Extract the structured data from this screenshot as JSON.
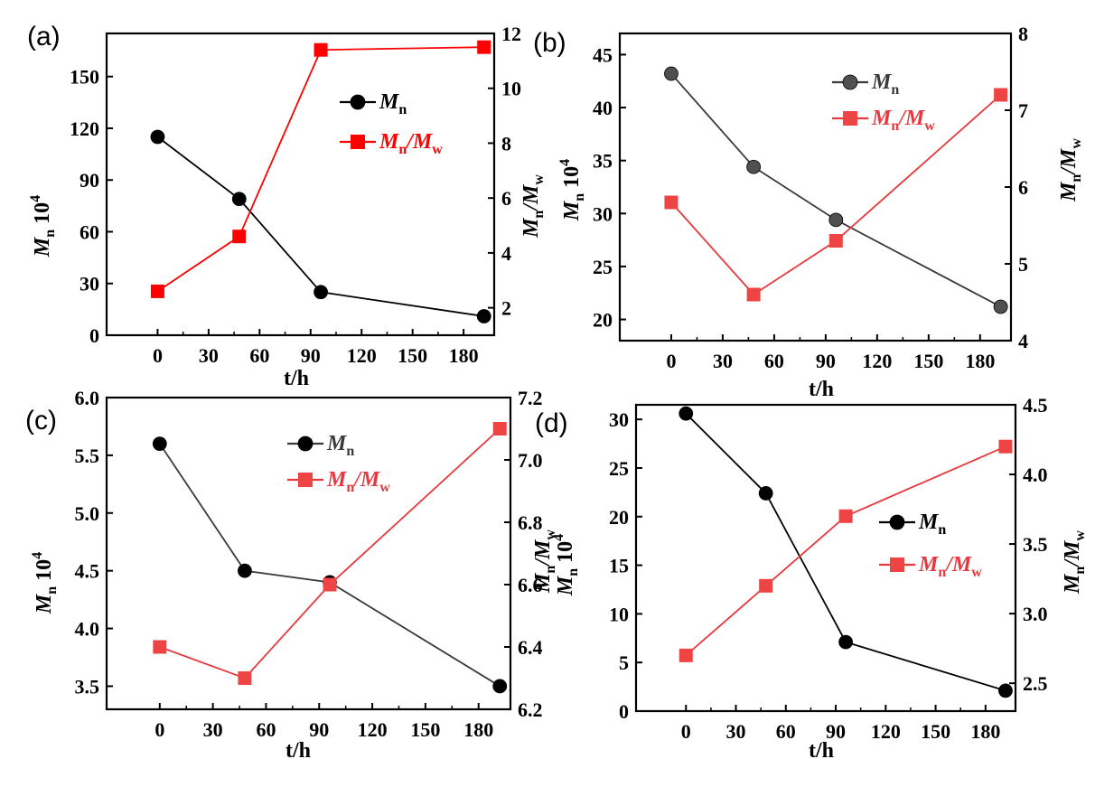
{
  "chart_data": [
    {
      "type": "line",
      "panel_label": "(a)",
      "xlabel": "t/h",
      "ylabel_left": {
        "main": "M",
        "sub": "n",
        "suffix": " 10",
        "sup": "4"
      },
      "ylabel_right": {
        "a": "M",
        "a_sub": "n",
        "b": "/M",
        "b_sub": "w"
      },
      "x_ticks": [
        "0",
        "30",
        "60",
        "90",
        "120",
        "150",
        "180"
      ],
      "y_left_ticks": [
        "0",
        "30",
        "60",
        "90",
        "120",
        "150"
      ],
      "y_right_ticks": [
        "2",
        "4",
        "6",
        "8",
        "10",
        "12"
      ],
      "xlim": [
        -30,
        198
      ],
      "ylim_left": [
        0,
        175
      ],
      "ylim_right": [
        1,
        12
      ],
      "series": [
        {
          "name": {
            "main": "M",
            "sub": "n"
          },
          "axis": "left",
          "color": "#000000",
          "marker_color": "#000000",
          "marker": "circle",
          "x": [
            0,
            48,
            96,
            192
          ],
          "values": [
            115,
            79,
            25,
            11
          ]
        },
        {
          "name": {
            "main": "M",
            "sub": "n",
            "main2": "/M",
            "sub2": "w"
          },
          "axis": "right",
          "color": "#ff0000",
          "marker_color": "#ff0000",
          "marker": "square",
          "x": [
            0,
            48,
            96,
            192
          ],
          "values": [
            2.6,
            4.6,
            11.4,
            11.5
          ]
        }
      ],
      "legend_placement": "upper-right"
    },
    {
      "type": "line",
      "panel_label": "(b)",
      "xlabel": "t/h",
      "ylabel_left": {
        "main": "M",
        "sub": "n",
        "suffix": " 10",
        "sup": "4"
      },
      "ylabel_right": {
        "a": "M",
        "a_sub": "n",
        "b": "/M",
        "b_sub": "w"
      },
      "x_ticks": [
        "0",
        "30",
        "60",
        "90",
        "120",
        "150",
        "180"
      ],
      "y_left_ticks": [
        "20",
        "25",
        "30",
        "35",
        "40",
        "45"
      ],
      "y_right_ticks": [
        "4",
        "5",
        "6",
        "7",
        "8"
      ],
      "xlim": [
        -30,
        198
      ],
      "ylim_left": [
        18,
        47
      ],
      "ylim_right": [
        4,
        8
      ],
      "series": [
        {
          "name": {
            "main": "M",
            "sub": "n"
          },
          "axis": "left",
          "color": "#3a3a3a",
          "marker_color": "#505050",
          "marker": "circle",
          "x": [
            0,
            48,
            96,
            192
          ],
          "values": [
            43.2,
            34.4,
            29.4,
            21.2
          ]
        },
        {
          "name": {
            "main": "M",
            "sub": "n",
            "main2": "/M",
            "sub2": "w"
          },
          "axis": "right",
          "color": "#e8383d",
          "marker_color": "#ee4444",
          "marker": "square",
          "x": [
            0,
            48,
            96,
            192
          ],
          "values": [
            5.8,
            4.6,
            5.3,
            7.2
          ]
        }
      ],
      "legend_placement": "upper-right"
    },
    {
      "type": "line",
      "panel_label": "(c)",
      "xlabel": "t/h",
      "ylabel_left": {
        "main": "M",
        "sub": "n",
        "suffix": " 10",
        "sup": "4"
      },
      "ylabel_right": {
        "a": "M",
        "a_sub": "n",
        "b": "/M",
        "b_sub": "w"
      },
      "x_ticks": [
        "0",
        "30",
        "60",
        "90",
        "120",
        "150",
        "180"
      ],
      "y_left_ticks": [
        "3.5",
        "4.0",
        "4.5",
        "5.0",
        "5.5",
        "6.0"
      ],
      "y_right_ticks": [
        "6.2",
        "6.4",
        "6.6",
        "6.8",
        "7.0",
        "7.2"
      ],
      "xlim": [
        -30,
        198
      ],
      "ylim_left": [
        3.3,
        6.0
      ],
      "ylim_right": [
        6.2,
        7.2
      ],
      "series": [
        {
          "name": {
            "main": "M",
            "sub": "n"
          },
          "axis": "left",
          "color": "#3a3a3a",
          "marker_color": "#000000",
          "marker": "circle",
          "x": [
            0,
            48,
            96,
            192
          ],
          "values": [
            5.6,
            4.5,
            4.4,
            3.5
          ]
        },
        {
          "name": {
            "main": "M",
            "sub": "n",
            "main2": "/M",
            "sub2": "w"
          },
          "axis": "right",
          "color": "#e8383d",
          "marker_color": "#ee4444",
          "marker": "square",
          "x": [
            0,
            48,
            96,
            192
          ],
          "values": [
            6.4,
            6.3,
            6.6,
            7.1
          ]
        }
      ],
      "legend_placement": "upper-right"
    },
    {
      "type": "line",
      "panel_label": "(d)",
      "xlabel": "t/h",
      "ylabel_left": {
        "main": "M",
        "sub": "n",
        "suffix": " 10",
        "sup": "4"
      },
      "ylabel_right": {
        "a": "M",
        "a_sub": "n",
        "b": "/M",
        "b_sub": "w"
      },
      "x_ticks": [
        "0",
        "30",
        "60",
        "90",
        "120",
        "150",
        "180"
      ],
      "y_left_ticks": [
        "0",
        "5",
        "10",
        "15",
        "20",
        "25",
        "30"
      ],
      "y_right_ticks": [
        "2.5",
        "3.0",
        "3.5",
        "4.0",
        "4.5"
      ],
      "xlim": [
        -30,
        198
      ],
      "ylim_left": [
        0,
        31.5
      ],
      "ylim_right": [
        2.3,
        4.5
      ],
      "series": [
        {
          "name": {
            "main": "M",
            "sub": "n"
          },
          "axis": "left",
          "color": "#000000",
          "marker_color": "#000000",
          "marker": "circle",
          "x": [
            0,
            48,
            96,
            192
          ],
          "values": [
            30.6,
            22.4,
            7.1,
            2.1
          ]
        },
        {
          "name": {
            "main": "M",
            "sub": "n",
            "main2": "/M",
            "sub2": "w"
          },
          "axis": "right",
          "color": "#e8383d",
          "marker_color": "#ee4444",
          "marker": "square",
          "x": [
            0,
            48,
            96,
            192
          ],
          "values": [
            2.7,
            3.2,
            3.7,
            4.2
          ]
        }
      ],
      "legend_placement": "middle-right"
    }
  ]
}
